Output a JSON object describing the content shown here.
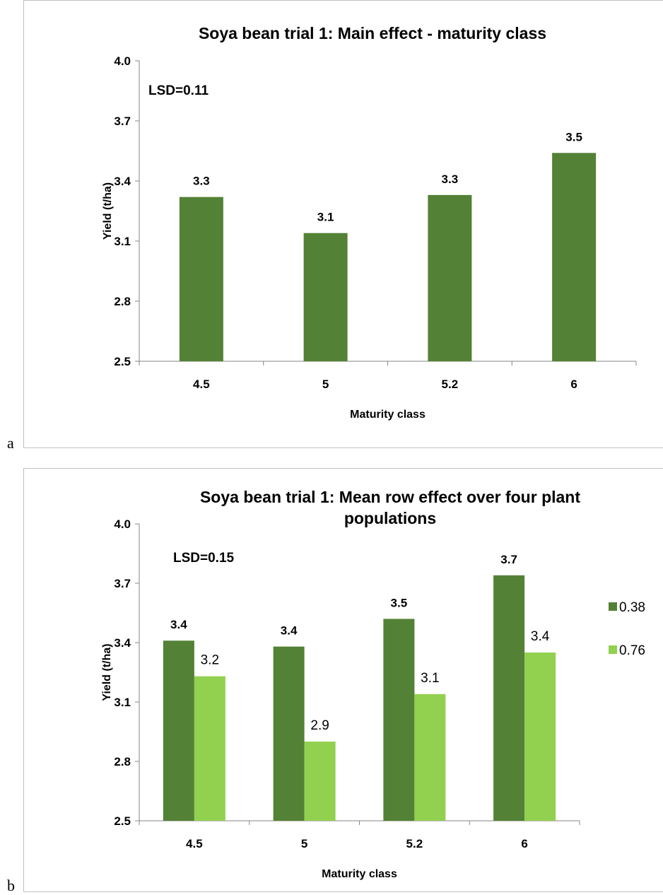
{
  "figure_letters": [
    "a",
    "b"
  ],
  "chart_data": [
    {
      "type": "bar",
      "title": "Soya bean trial 1: Main effect - maturity class",
      "xlabel": "Maturity class",
      "ylabel": "Yield (t/ha)",
      "ylim": [
        2.5,
        4.0
      ],
      "yticks": [
        "2.5",
        "2.8",
        "3.1",
        "3.4",
        "3.7",
        "4.0"
      ],
      "annotation": "LSD=0.11",
      "categories": [
        "4.5",
        "5",
        "5.2",
        "6"
      ],
      "legend": "none",
      "series": [
        {
          "values": [
            3.32,
            3.14,
            3.33,
            3.54
          ],
          "labels": [
            "3.3",
            "3.1",
            "3.3",
            "3.5"
          ],
          "color": "#538135"
        }
      ]
    },
    {
      "type": "bar",
      "title": "Soya bean trial 1: Mean row effect over four plant populations",
      "xlabel": "Maturity class",
      "ylabel": "Yield (t/ha)",
      "ylim": [
        2.5,
        4.0
      ],
      "yticks": [
        "2.5",
        "2.8",
        "3.1",
        "3.4",
        "3.7",
        "4.0"
      ],
      "annotation": "LSD=0.15",
      "categories": [
        "4.5",
        "5",
        "5.2",
        "6"
      ],
      "legend": "right",
      "series": [
        {
          "name": "0.38",
          "values": [
            3.41,
            3.38,
            3.52,
            3.74
          ],
          "labels": [
            "3.4",
            "3.4",
            "3.5",
            "3.7"
          ],
          "color": "#538135"
        },
        {
          "name": "0.76",
          "values": [
            3.23,
            2.9,
            3.14,
            3.35
          ],
          "labels": [
            "3.2",
            "2.9",
            "3.1",
            "3.4"
          ],
          "color": "#92d050"
        }
      ]
    }
  ]
}
